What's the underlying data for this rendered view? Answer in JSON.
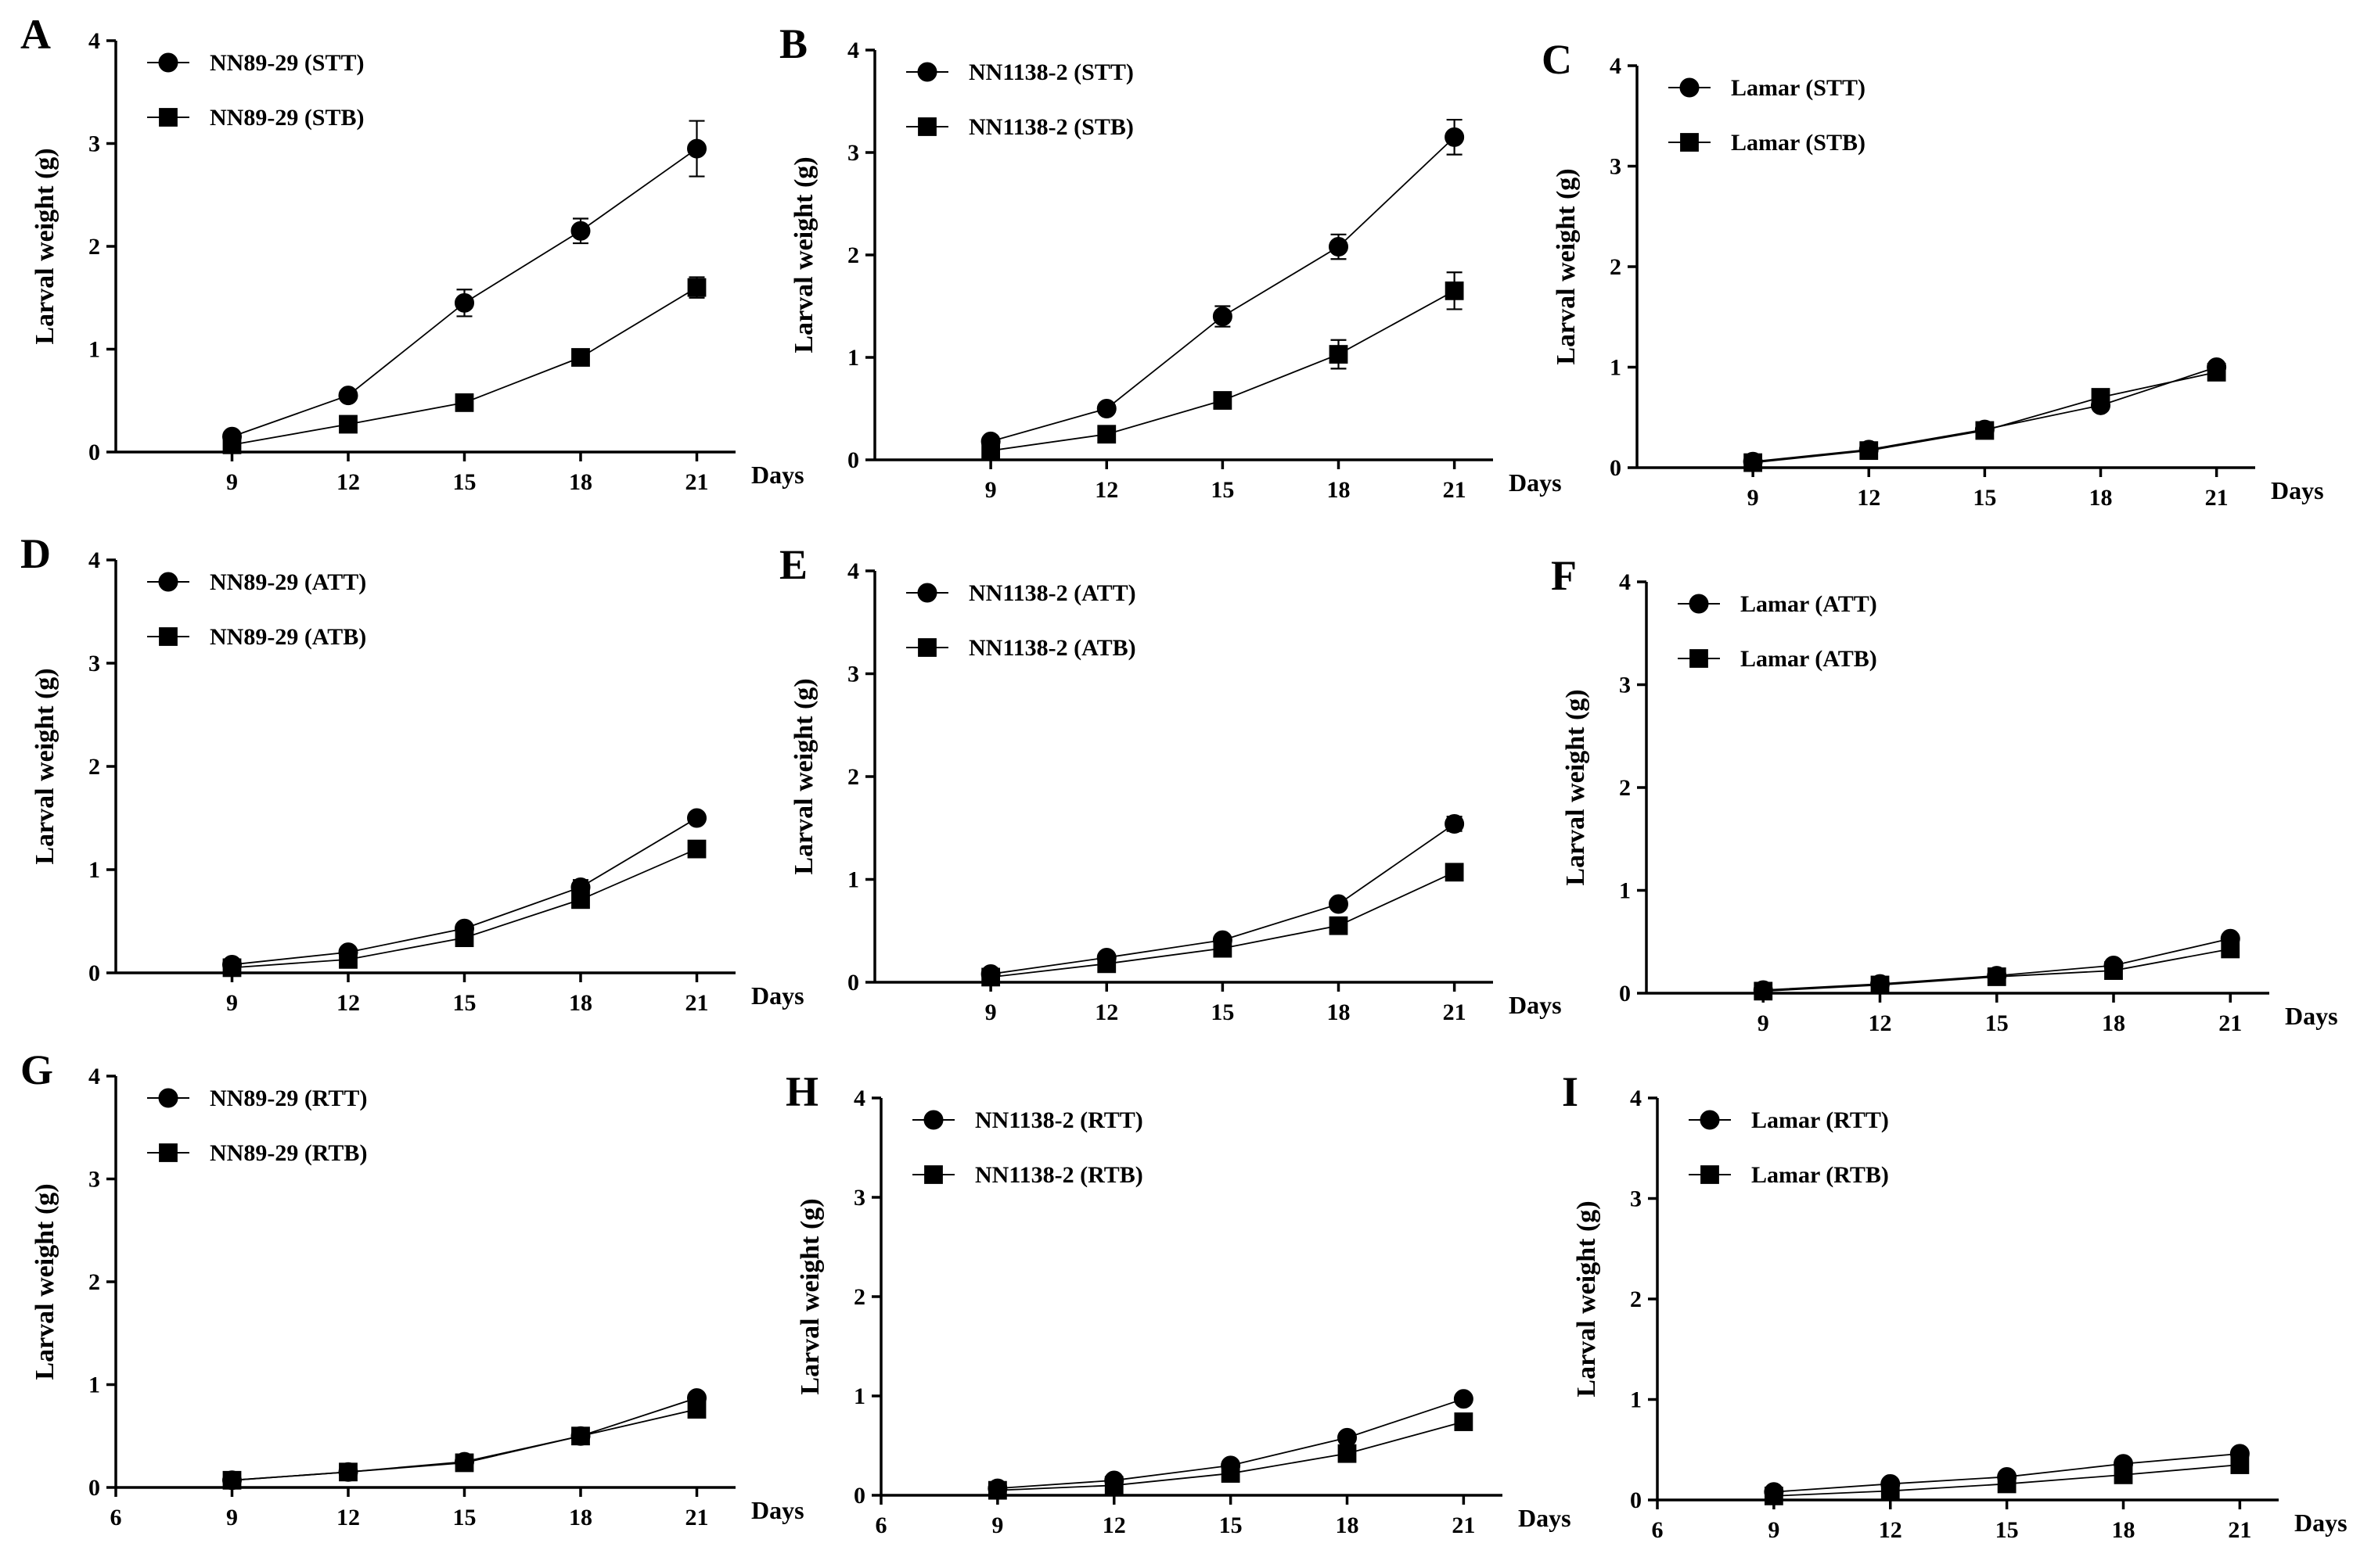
{
  "figure": {
    "background": "#ffffff",
    "ink": "#000000"
  },
  "chart_data": [
    {
      "panel": "A",
      "type": "line",
      "ylabel": "Larval weight (g)",
      "xlabel": "Days",
      "ylim": [
        0,
        4
      ],
      "yticks": [
        0,
        1,
        2,
        3,
        4
      ],
      "xlim": [
        6,
        22
      ],
      "xticks": [
        9,
        12,
        15,
        18,
        21
      ],
      "x_zero_tick_label": false,
      "x": [
        9,
        12,
        15,
        18,
        21
      ],
      "series": [
        {
          "name": "NN89-29 (STT)",
          "marker": "circle",
          "values": [
            0.15,
            0.55,
            1.45,
            2.15,
            2.95
          ],
          "errors": [
            0.03,
            0.03,
            0.13,
            0.12,
            0.27
          ]
        },
        {
          "name": "NN89-29 (STB)",
          "marker": "square",
          "values": [
            0.07,
            0.27,
            0.48,
            0.92,
            1.6
          ],
          "errors": [
            0.02,
            0.02,
            0.04,
            0.05,
            0.1
          ]
        }
      ]
    },
    {
      "panel": "B",
      "type": "line",
      "ylabel": "Larval weight (g)",
      "xlabel": "Days",
      "ylim": [
        0,
        4
      ],
      "yticks": [
        0,
        1,
        2,
        3,
        4
      ],
      "xlim": [
        6,
        22
      ],
      "xticks": [
        9,
        12,
        15,
        18,
        21
      ],
      "x_zero_tick_label": false,
      "x": [
        9,
        12,
        15,
        18,
        21
      ],
      "series": [
        {
          "name": "NN1138-2 (STT)",
          "marker": "circle",
          "values": [
            0.18,
            0.5,
            1.4,
            2.08,
            3.15
          ],
          "errors": [
            0.03,
            0.04,
            0.1,
            0.12,
            0.17
          ]
        },
        {
          "name": "NN1138-2 (STB)",
          "marker": "square",
          "values": [
            0.09,
            0.25,
            0.58,
            1.03,
            1.65
          ],
          "errors": [
            0.02,
            0.03,
            0.07,
            0.14,
            0.18
          ]
        }
      ]
    },
    {
      "panel": "C",
      "type": "line",
      "ylabel": "Larval weight (g)",
      "xlabel": "Days",
      "ylim": [
        0,
        4
      ],
      "yticks": [
        0,
        1,
        2,
        3,
        4
      ],
      "xlim": [
        6,
        22
      ],
      "xticks": [
        9,
        12,
        15,
        18,
        21
      ],
      "x_zero_tick_label": false,
      "x": [
        9,
        12,
        15,
        18,
        21
      ],
      "series": [
        {
          "name": "Lamar (STT)",
          "marker": "circle",
          "values": [
            0.06,
            0.18,
            0.38,
            0.62,
            1.0
          ],
          "errors": [
            0.01,
            0.02,
            0.03,
            0.04,
            0.04
          ]
        },
        {
          "name": "Lamar (STB)",
          "marker": "square",
          "values": [
            0.05,
            0.17,
            0.37,
            0.7,
            0.95
          ],
          "errors": [
            0.01,
            0.02,
            0.03,
            0.04,
            0.04
          ]
        }
      ]
    },
    {
      "panel": "D",
      "type": "line",
      "ylabel": "Larval weight (g)",
      "xlabel": "Days",
      "ylim": [
        0,
        4
      ],
      "yticks": [
        0,
        1,
        2,
        3,
        4
      ],
      "xlim": [
        6,
        22
      ],
      "xticks": [
        9,
        12,
        15,
        18,
        21
      ],
      "x_zero_tick_label": false,
      "x": [
        9,
        12,
        15,
        18,
        21
      ],
      "series": [
        {
          "name": "NN89-29 (ATT)",
          "marker": "circle",
          "values": [
            0.08,
            0.2,
            0.43,
            0.83,
            1.5
          ],
          "errors": [
            0.01,
            0.02,
            0.03,
            0.07,
            0.03
          ]
        },
        {
          "name": "NN89-29 (ATB)",
          "marker": "square",
          "values": [
            0.05,
            0.13,
            0.34,
            0.71,
            1.2
          ],
          "errors": [
            0.01,
            0.02,
            0.03,
            0.04,
            0.03
          ]
        }
      ]
    },
    {
      "panel": "E",
      "type": "line",
      "ylabel": "Larval weight (g)",
      "xlabel": "Days",
      "ylim": [
        0,
        4
      ],
      "yticks": [
        0,
        1,
        2,
        3,
        4
      ],
      "xlim": [
        6,
        22
      ],
      "xticks": [
        9,
        12,
        15,
        18,
        21
      ],
      "x_zero_tick_label": false,
      "x": [
        9,
        12,
        15,
        18,
        21
      ],
      "series": [
        {
          "name": "NN1138-2 (ATT)",
          "marker": "circle",
          "values": [
            0.08,
            0.24,
            0.41,
            0.76,
            1.54
          ],
          "errors": [
            0.01,
            0.02,
            0.03,
            0.04,
            0.07
          ]
        },
        {
          "name": "NN1138-2 (ATB)",
          "marker": "square",
          "values": [
            0.05,
            0.18,
            0.33,
            0.55,
            1.07
          ],
          "errors": [
            0.01,
            0.02,
            0.03,
            0.05,
            0.06
          ]
        }
      ]
    },
    {
      "panel": "F",
      "type": "line",
      "ylabel": "Larval weight (g)",
      "xlabel": "Days",
      "ylim": [
        0,
        4
      ],
      "yticks": [
        0,
        1,
        2,
        3,
        4
      ],
      "xlim": [
        6,
        22
      ],
      "xticks": [
        9,
        12,
        15,
        18,
        21
      ],
      "x_zero_tick_label": false,
      "x": [
        9,
        12,
        15,
        18,
        21
      ],
      "series": [
        {
          "name": "Lamar (ATT)",
          "marker": "circle",
          "values": [
            0.03,
            0.09,
            0.17,
            0.27,
            0.53
          ],
          "errors": [
            0.01,
            0.01,
            0.02,
            0.02,
            0.03
          ]
        },
        {
          "name": "Lamar (ATB)",
          "marker": "square",
          "values": [
            0.02,
            0.08,
            0.16,
            0.22,
            0.43
          ],
          "errors": [
            0.01,
            0.01,
            0.02,
            0.02,
            0.03
          ]
        }
      ]
    },
    {
      "panel": "G",
      "type": "line",
      "ylabel": "Larval weight (g)",
      "xlabel": "Days",
      "ylim": [
        0,
        4
      ],
      "yticks": [
        0,
        1,
        2,
        3,
        4
      ],
      "xlim": [
        6,
        22
      ],
      "xticks": [
        6,
        9,
        12,
        15,
        18,
        21
      ],
      "x_zero_tick_label": true,
      "x": [
        9,
        12,
        15,
        18,
        21
      ],
      "series": [
        {
          "name": "NN89-29 (RTT)",
          "marker": "circle",
          "values": [
            0.07,
            0.15,
            0.25,
            0.5,
            0.87
          ],
          "errors": [
            0.01,
            0.02,
            0.02,
            0.03,
            0.05
          ]
        },
        {
          "name": "NN89-29 (RTB)",
          "marker": "square",
          "values": [
            0.07,
            0.15,
            0.24,
            0.5,
            0.76
          ],
          "errors": [
            0.01,
            0.02,
            0.02,
            0.03,
            0.05
          ]
        }
      ]
    },
    {
      "panel": "H",
      "type": "line",
      "ylabel": "Larval weight (g)",
      "xlabel": "Days",
      "ylim": [
        0,
        4
      ],
      "yticks": [
        0,
        1,
        2,
        3,
        4
      ],
      "xlim": [
        6,
        22
      ],
      "xticks": [
        6,
        9,
        12,
        15,
        18,
        21
      ],
      "x_zero_tick_label": true,
      "x": [
        9,
        12,
        15,
        18,
        21
      ],
      "series": [
        {
          "name": "NN1138-2 (RTT)",
          "marker": "circle",
          "values": [
            0.07,
            0.15,
            0.3,
            0.58,
            0.97
          ],
          "errors": [
            0.01,
            0.02,
            0.02,
            0.03,
            0.03
          ]
        },
        {
          "name": "NN1138-2 (RTB)",
          "marker": "square",
          "values": [
            0.05,
            0.1,
            0.22,
            0.42,
            0.74
          ],
          "errors": [
            0.01,
            0.02,
            0.02,
            0.03,
            0.03
          ]
        }
      ]
    },
    {
      "panel": "I",
      "type": "line",
      "ylabel": "Larval weight (g)",
      "xlabel": "Days",
      "ylim": [
        0,
        4
      ],
      "yticks": [
        0,
        1,
        2,
        3,
        4
      ],
      "xlim": [
        6,
        22
      ],
      "xticks": [
        6,
        9,
        12,
        15,
        18,
        21
      ],
      "x_zero_tick_label": true,
      "x": [
        9,
        12,
        15,
        18,
        21
      ],
      "series": [
        {
          "name": "Lamar (RTT)",
          "marker": "circle",
          "values": [
            0.08,
            0.16,
            0.23,
            0.36,
            0.46
          ],
          "errors": [
            0.01,
            0.02,
            0.02,
            0.03,
            0.03
          ]
        },
        {
          "name": "Lamar (RTB)",
          "marker": "square",
          "values": [
            0.04,
            0.09,
            0.16,
            0.25,
            0.35
          ],
          "errors": [
            0.01,
            0.02,
            0.02,
            0.02,
            0.03
          ]
        }
      ]
    }
  ]
}
